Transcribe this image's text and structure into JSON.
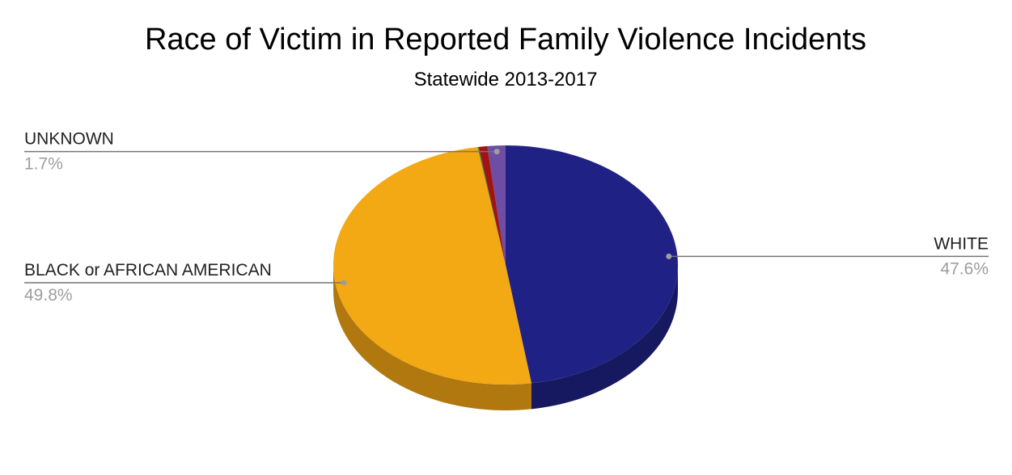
{
  "chart_data": {
    "type": "pie",
    "style": "3d",
    "title": "Race of Victim in Reported Family Violence Incidents",
    "subtitle": "Statewide 2013-2017",
    "slices": [
      {
        "label": "WHITE",
        "value": 47.6,
        "value_label": "47.6%",
        "color": "#1f2284",
        "side_color": "#161860",
        "show_label": true
      },
      {
        "label": "BLACK or AFRICAN AMERICAN",
        "value": 49.8,
        "value_label": "49.8%",
        "color": "#f2a914",
        "side_color": "#b0780f",
        "show_label": true
      },
      {
        "label": "",
        "value": 0.1,
        "value_label": "",
        "color": "#2e8b3a",
        "side_color": "#1f6128",
        "show_label": false
      },
      {
        "label": "",
        "value": 0.8,
        "value_label": "",
        "color": "#a01414",
        "side_color": "#6f0e0e",
        "show_label": false
      },
      {
        "label": "UNKNOWN",
        "value": 1.7,
        "value_label": "1.7%",
        "color": "#6d4ea4",
        "side_color": "#4b3673",
        "show_label": true
      }
    ],
    "legend": "none"
  }
}
